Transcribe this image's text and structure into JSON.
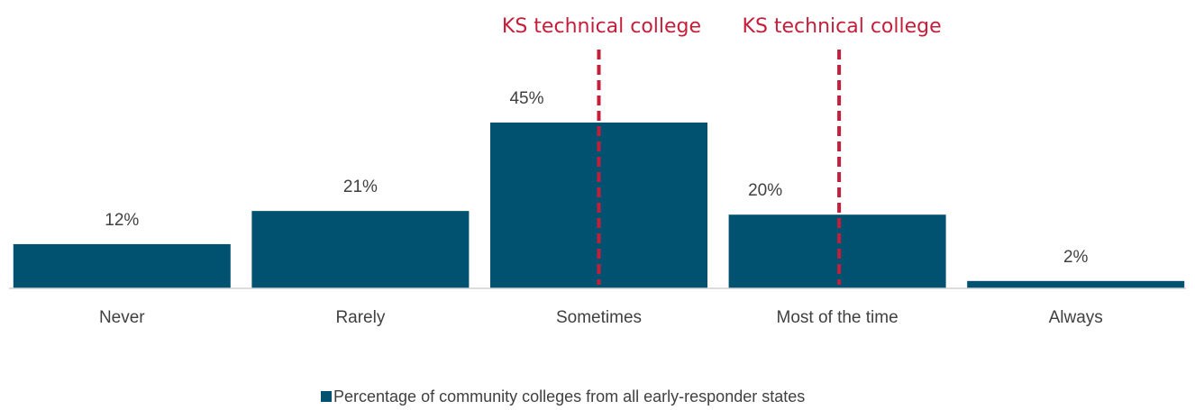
{
  "chart_data": {
    "type": "bar",
    "categories": [
      "Never",
      "Rarely",
      "Sometimes",
      "Most of the time",
      "Always"
    ],
    "series": [
      {
        "name": "Percentage of community colleges from all early-responder states",
        "color": "#005270",
        "values": [
          12,
          21,
          45,
          20,
          2
        ],
        "value_labels": [
          "12%",
          "21%",
          "45%",
          "20%",
          "2%"
        ]
      }
    ],
    "annotations": [
      {
        "text": "KS technical college",
        "category": "Sometimes",
        "color": "#c41e3a"
      },
      {
        "text": "KS technical college",
        "category": "Most of the time",
        "color": "#c41e3a"
      }
    ],
    "legend": "bottom"
  }
}
